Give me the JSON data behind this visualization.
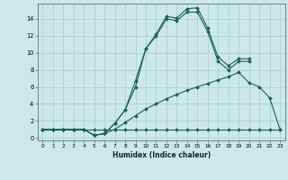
{
  "xlabel": "Humidex (Indice chaleur)",
  "background_color": "#cce8e8",
  "grid_color": "#aacccc",
  "line_color": "#1a5f5f",
  "xlim": [
    -0.5,
    23.5
  ],
  "ylim": [
    -0.3,
    15.8
  ],
  "xticks": [
    0,
    1,
    2,
    3,
    4,
    5,
    6,
    7,
    8,
    9,
    10,
    11,
    12,
    13,
    14,
    15,
    16,
    17,
    18,
    19,
    20,
    21,
    22,
    23
  ],
  "yticks": [
    0,
    2,
    4,
    6,
    8,
    10,
    12,
    14
  ],
  "series": [
    {
      "x": [
        0,
        1,
        2,
        3,
        4,
        5,
        6,
        7,
        8,
        9,
        10,
        11,
        12,
        13,
        14,
        15,
        16,
        17,
        18,
        19,
        20
      ],
      "y": [
        1.0,
        1.0,
        1.0,
        1.0,
        1.0,
        0.3,
        0.5,
        1.7,
        3.3,
        6.7,
        10.5,
        12.2,
        14.3,
        14.1,
        15.2,
        15.3,
        12.9,
        9.5,
        8.5,
        9.3,
        9.3
      ]
    },
    {
      "x": [
        0,
        1,
        2,
        3,
        4,
        5,
        6,
        7,
        8,
        9,
        10,
        11,
        12,
        13,
        14,
        15,
        16,
        17,
        18,
        19,
        20,
        21,
        22,
        23
      ],
      "y": [
        1.0,
        1.0,
        1.0,
        1.0,
        1.0,
        1.0,
        1.0,
        1.0,
        1.0,
        1.0,
        1.0,
        1.0,
        1.0,
        1.0,
        1.0,
        1.0,
        1.0,
        1.0,
        1.0,
        1.0,
        1.0,
        1.0,
        1.0,
        1.0
      ]
    },
    {
      "x": [
        0,
        1,
        2,
        3,
        4,
        5,
        6,
        7,
        8,
        9,
        10,
        11,
        12,
        13,
        14,
        15,
        16,
        17,
        18,
        19,
        20,
        21,
        22,
        23
      ],
      "y": [
        1.0,
        1.0,
        1.0,
        1.0,
        1.0,
        0.3,
        0.5,
        1.0,
        1.8,
        2.6,
        3.4,
        4.0,
        4.6,
        5.1,
        5.6,
        6.0,
        6.4,
        6.8,
        7.2,
        7.7,
        6.5,
        6.0,
        4.7,
        1.0
      ]
    },
    {
      "x": [
        0,
        1,
        2,
        3,
        4,
        5,
        6,
        7,
        8,
        9,
        10,
        11,
        12,
        13,
        14,
        15,
        16,
        17,
        18,
        19,
        20
      ],
      "y": [
        1.0,
        1.0,
        1.0,
        1.0,
        1.0,
        0.3,
        0.5,
        1.7,
        3.3,
        6.0,
        10.5,
        12.0,
        14.0,
        13.8,
        14.8,
        14.8,
        12.5,
        9.0,
        8.0,
        9.0,
        9.0
      ]
    }
  ]
}
